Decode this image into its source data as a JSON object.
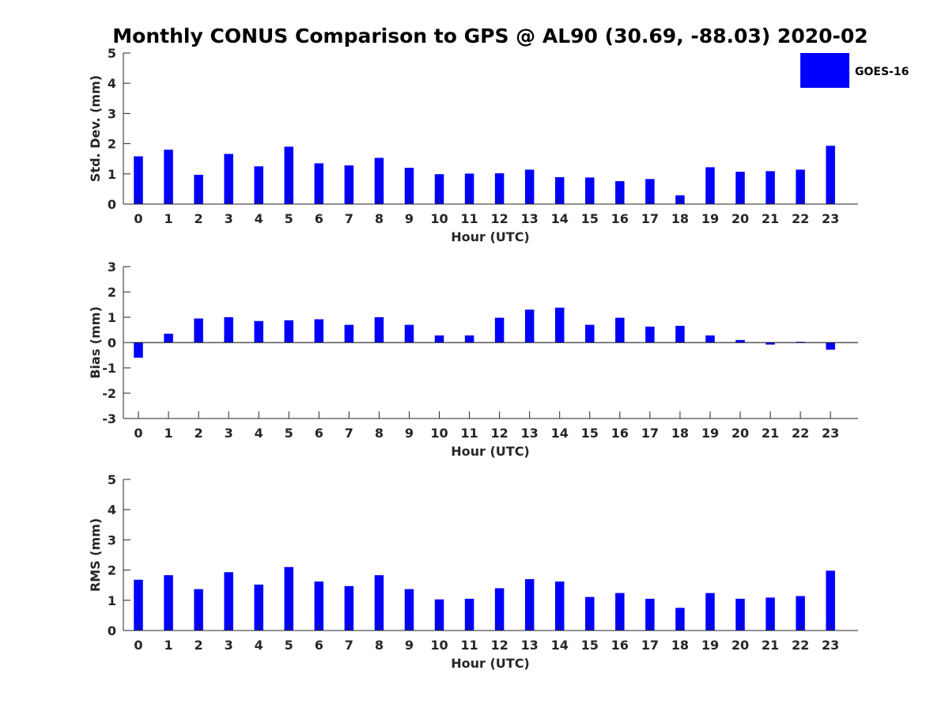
{
  "title": "Monthly CONUS Comparison to GPS @ AL90 (30.69, -88.03) 2020-02",
  "legend": {
    "label": "GOES-16",
    "color": "#0000ff"
  },
  "chart_data": [
    {
      "type": "bar",
      "name": "std-dev",
      "series_name": "GOES-16",
      "color": "#0000ff",
      "xlabel": "Hour (UTC)",
      "ylabel": "Std. Dev. (mm)",
      "ylim": [
        0,
        5
      ],
      "yticks": [
        "0",
        "1",
        "2",
        "3",
        "4",
        "5"
      ],
      "categories": [
        "0",
        "1",
        "2",
        "3",
        "4",
        "5",
        "6",
        "7",
        "8",
        "9",
        "10",
        "11",
        "12",
        "13",
        "14",
        "15",
        "16",
        "17",
        "18",
        "19",
        "20",
        "21",
        "22",
        "23"
      ],
      "values": [
        1.58,
        1.8,
        0.97,
        1.66,
        1.25,
        1.9,
        1.35,
        1.28,
        1.53,
        1.2,
        0.99,
        1.01,
        1.02,
        1.14,
        0.89,
        0.88,
        0.76,
        0.83,
        0.29,
        1.22,
        1.07,
        1.09,
        1.14,
        1.93
      ],
      "legend_position": "top-right"
    },
    {
      "type": "bar",
      "name": "bias",
      "series_name": "GOES-16",
      "color": "#0000ff",
      "xlabel": "Hour (UTC)",
      "ylabel": "Bias (mm)",
      "ylim": [
        -3,
        3
      ],
      "yticks": [
        "-3",
        "-2",
        "-1",
        "0",
        "1",
        "2",
        "3"
      ],
      "categories": [
        "0",
        "1",
        "2",
        "3",
        "4",
        "5",
        "6",
        "7",
        "8",
        "9",
        "10",
        "11",
        "12",
        "13",
        "14",
        "15",
        "16",
        "17",
        "18",
        "19",
        "20",
        "21",
        "22",
        "23"
      ],
      "values": [
        -0.6,
        0.35,
        0.95,
        1.0,
        0.85,
        0.88,
        0.92,
        0.7,
        1.0,
        0.7,
        0.28,
        0.28,
        0.98,
        1.3,
        1.38,
        0.7,
        0.98,
        0.63,
        0.66,
        0.28,
        0.1,
        -0.08,
        0.03,
        -0.28
      ],
      "zero_line": true
    },
    {
      "type": "bar",
      "name": "rms",
      "series_name": "GOES-16",
      "color": "#0000ff",
      "xlabel": "Hour (UTC)",
      "ylabel": "RMS (mm)",
      "ylim": [
        0,
        5
      ],
      "yticks": [
        "0",
        "1",
        "2",
        "3",
        "4",
        "5"
      ],
      "categories": [
        "0",
        "1",
        "2",
        "3",
        "4",
        "5",
        "6",
        "7",
        "8",
        "9",
        "10",
        "11",
        "12",
        "13",
        "14",
        "15",
        "16",
        "17",
        "18",
        "19",
        "20",
        "21",
        "22",
        "23"
      ],
      "values": [
        1.68,
        1.83,
        1.37,
        1.93,
        1.52,
        2.1,
        1.62,
        1.47,
        1.83,
        1.37,
        1.03,
        1.05,
        1.4,
        1.7,
        1.62,
        1.11,
        1.24,
        1.05,
        0.75,
        1.24,
        1.05,
        1.09,
        1.14,
        1.98
      ]
    }
  ]
}
